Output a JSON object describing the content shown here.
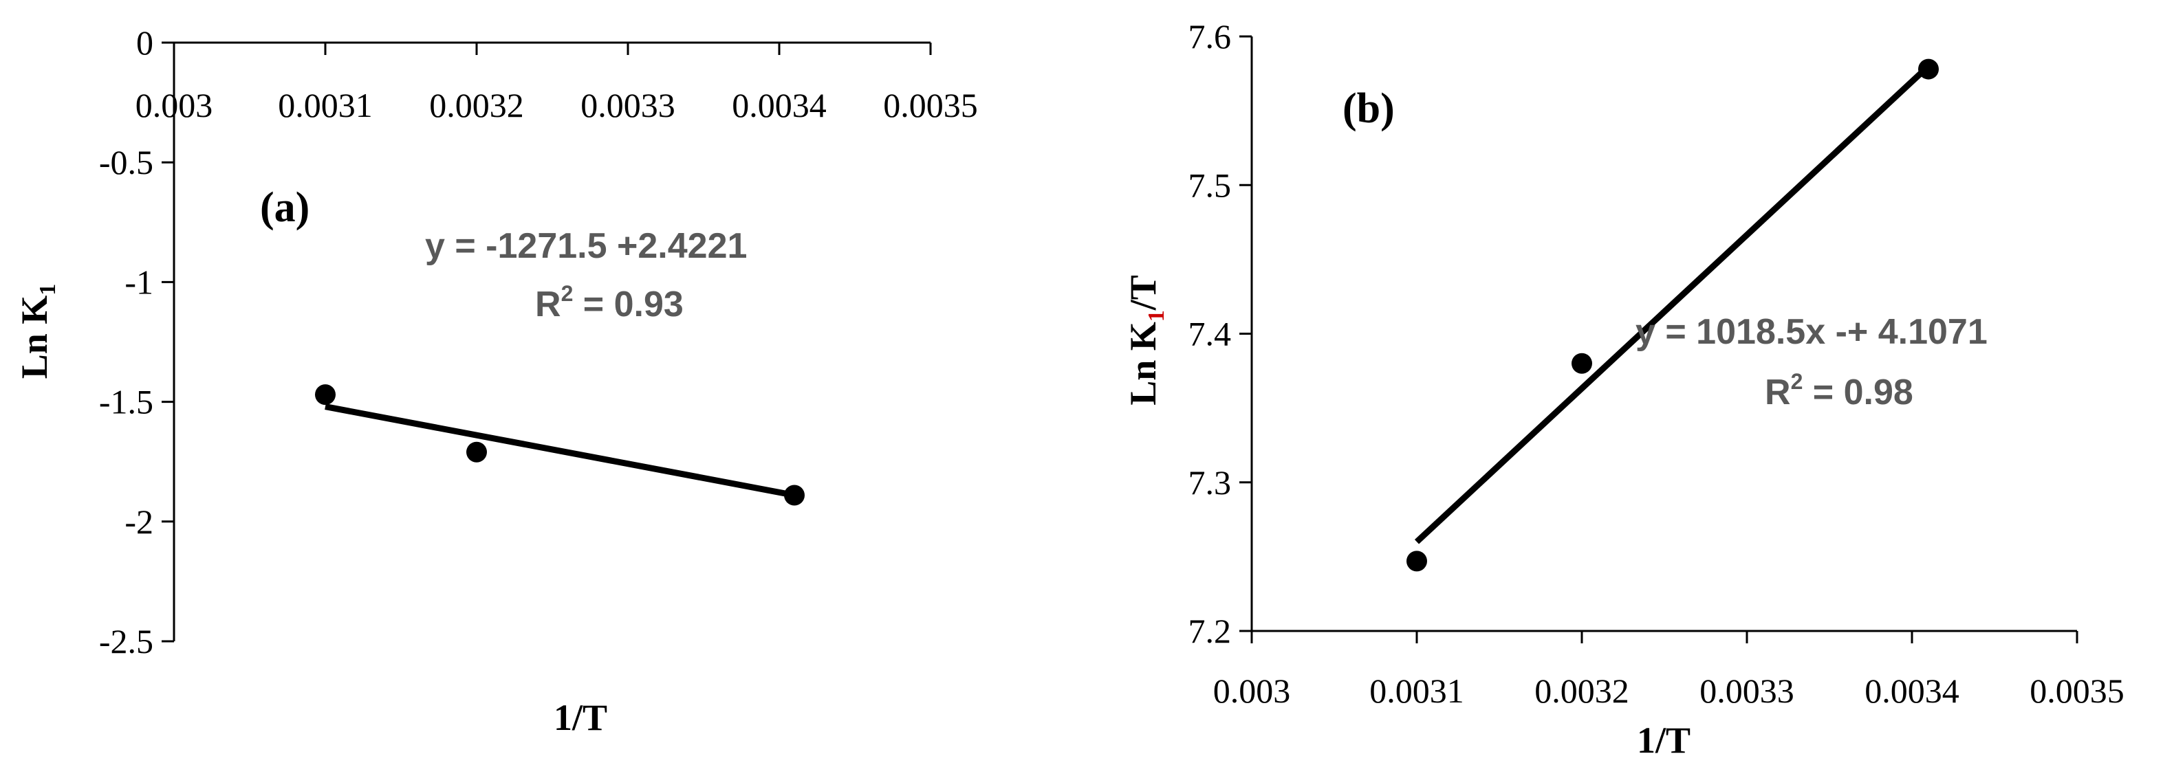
{
  "chart_data": [
    {
      "type": "scatter",
      "panel_label": "(a)",
      "title": "",
      "xlabel": "1/T",
      "ylabel_main": "Ln K",
      "ylabel_sub": "1",
      "x": [
        0.0031,
        0.0032,
        0.00341
      ],
      "y": [
        -1.47,
        -1.71,
        -1.89
      ],
      "trendline": {
        "x": [
          0.0031,
          0.00341
        ],
        "y": [
          -1.52,
          -1.89
        ]
      },
      "xlim": [
        0.003,
        0.0035
      ],
      "ylim": [
        -2.5,
        0
      ],
      "x_ticks": [
        "0.003",
        "0.0031",
        "0.0032",
        "0.0033",
        "0.0034",
        "0.0035"
      ],
      "y_ticks": [
        "0",
        "-0.5",
        "-1",
        "-1.5",
        "-2",
        "-2.5"
      ],
      "equation": "y = -1271.5 +2.4221",
      "r2_prefix": "R",
      "r2_sup": "2",
      "r2_value": " = 0.93",
      "grid": false,
      "marker_color": "#000000",
      "line_color": "#000000",
      "annotation_color": "#595959"
    },
    {
      "type": "scatter",
      "panel_label": "(b)",
      "title": "",
      "xlabel": "1/T",
      "ylabel_main": "Ln K",
      "ylabel_sub": "1",
      "ylabel_tail": "/T",
      "x": [
        0.0031,
        0.0032,
        0.00341
      ],
      "y": [
        7.247,
        7.38,
        7.578
      ],
      "trendline": {
        "x": [
          0.0031,
          0.00341
        ],
        "y": [
          7.26,
          7.58
        ]
      },
      "xlim": [
        0.003,
        0.0035
      ],
      "ylim": [
        7.2,
        7.6
      ],
      "x_ticks": [
        "0.003",
        "0.0031",
        "0.0032",
        "0.0033",
        "0.0034",
        "0.0035"
      ],
      "y_ticks": [
        "7.2",
        "7.3",
        "7.4",
        "7.5",
        "7.6"
      ],
      "equation": "y = 1018.5x -+ 4.1071",
      "r2_prefix": "R",
      "r2_sup": "2",
      "r2_value": " = 0.98",
      "grid": false,
      "marker_color": "#000000",
      "line_color": "#000000",
      "annotation_color": "#595959",
      "subscript_color": "#cc0000"
    }
  ]
}
